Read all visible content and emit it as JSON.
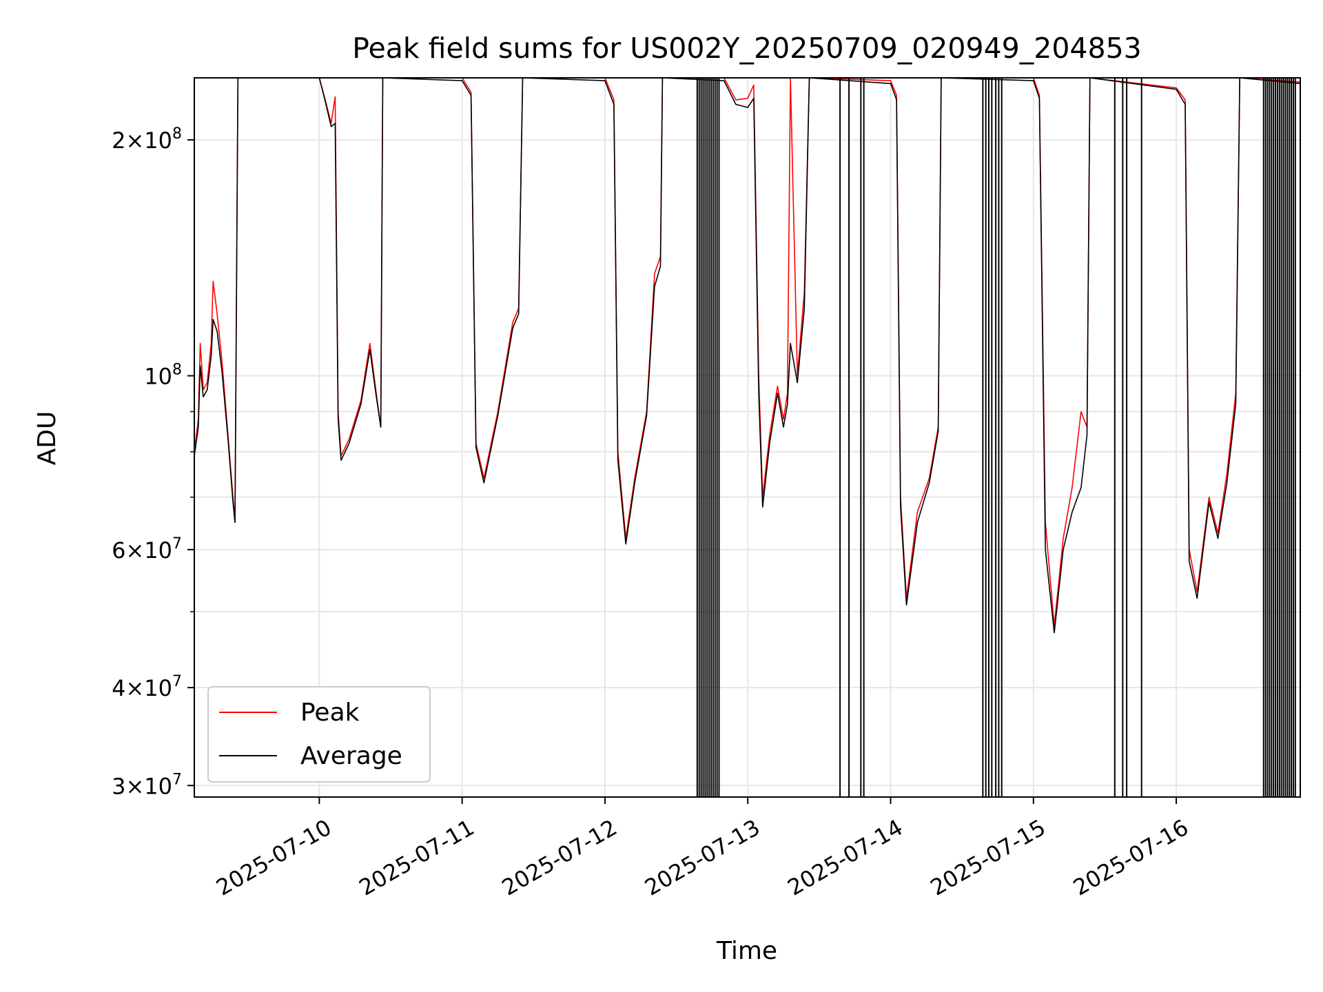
{
  "chart_data": {
    "type": "line",
    "title": "Peak field sums for US002Y_20250709_020949_204853",
    "xlabel": "Time",
    "ylabel": "ADU",
    "yscale": "log",
    "ylim": [
      29000000,
      240000000
    ],
    "xlim": [
      "2025-07-09T03:00",
      "2025-07-16T20:50"
    ],
    "grid": true,
    "legend_position": "lower-left",
    "x_ticks": [
      "2025-07-10",
      "2025-07-11",
      "2025-07-12",
      "2025-07-13",
      "2025-07-14",
      "2025-07-15",
      "2025-07-16"
    ],
    "y_ticks": [
      {
        "value": 30000000,
        "mantissa": "3",
        "exp": "7"
      },
      {
        "value": 40000000,
        "mantissa": "4",
        "exp": "7"
      },
      {
        "value": 60000000,
        "mantissa": "6",
        "exp": "7"
      },
      {
        "value": 100000000,
        "mantissa": "",
        "exp": "8"
      },
      {
        "value": 200000000,
        "mantissa": "2",
        "exp": "8"
      }
    ],
    "y_minor_ticks": [
      50000000,
      70000000,
      80000000,
      90000000
    ],
    "series": [
      {
        "name": "Peak",
        "color": "#ff0000",
        "points": [
          [
            "2025-07-09T03:00",
            80000000
          ],
          [
            "2025-07-09T03:40",
            88000000
          ],
          [
            "2025-07-09T04:00",
            110000000
          ],
          [
            "2025-07-09T04:30",
            96000000
          ],
          [
            "2025-07-09T05:10",
            98000000
          ],
          [
            "2025-07-09T05:50",
            110000000
          ],
          [
            "2025-07-09T06:10",
            132000000
          ],
          [
            "2025-07-09T06:50",
            120000000
          ],
          [
            "2025-07-09T07:40",
            104000000
          ],
          [
            "2025-07-09T08:40",
            84000000
          ],
          [
            "2025-07-09T09:30",
            70000000
          ],
          [
            "2025-07-09T09:50",
            65000000
          ],
          [
            "2025-07-09T10:20",
            240000000
          ],
          [
            "2025-07-10T00:00",
            240000000
          ],
          [
            "2025-07-10T01:00",
            225000000
          ],
          [
            "2025-07-10T02:00",
            210000000
          ],
          [
            "2025-07-10T02:40",
            227000000
          ],
          [
            "2025-07-10T03:10",
            90000000
          ],
          [
            "2025-07-10T03:40",
            79000000
          ],
          [
            "2025-07-10T05:00",
            83000000
          ],
          [
            "2025-07-10T07:00",
            93000000
          ],
          [
            "2025-07-10T08:30",
            110000000
          ],
          [
            "2025-07-10T09:30",
            96000000
          ],
          [
            "2025-07-10T10:20",
            86000000
          ],
          [
            "2025-07-10T10:40",
            240000000
          ],
          [
            "2025-07-11T00:00",
            240000000
          ],
          [
            "2025-07-11T01:30",
            230000000
          ],
          [
            "2025-07-11T02:20",
            82000000
          ],
          [
            "2025-07-11T03:40",
            74000000
          ],
          [
            "2025-07-11T06:00",
            90000000
          ],
          [
            "2025-07-11T08:30",
            117000000
          ],
          [
            "2025-07-11T09:30",
            122000000
          ],
          [
            "2025-07-11T10:10",
            240000000
          ],
          [
            "2025-07-12T00:00",
            240000000
          ],
          [
            "2025-07-12T01:30",
            225000000
          ],
          [
            "2025-07-12T02:10",
            80000000
          ],
          [
            "2025-07-12T03:30",
            62000000
          ],
          [
            "2025-07-12T05:00",
            74000000
          ],
          [
            "2025-07-12T07:00",
            90000000
          ],
          [
            "2025-07-12T08:20",
            135000000
          ],
          [
            "2025-07-12T09:20",
            142000000
          ],
          [
            "2025-07-12T09:40",
            240000000
          ],
          [
            "2025-07-12T20:00",
            240000000
          ],
          [
            "2025-07-12T22:00",
            225000000
          ],
          [
            "2025-07-13T00:00",
            226000000
          ],
          [
            "2025-07-13T01:00",
            235000000
          ],
          [
            "2025-07-13T01:50",
            100000000
          ],
          [
            "2025-07-13T02:30",
            70000000
          ],
          [
            "2025-07-13T03:40",
            84000000
          ],
          [
            "2025-07-13T05:00",
            97000000
          ],
          [
            "2025-07-13T06:00",
            88000000
          ],
          [
            "2025-07-13T06:40",
            95000000
          ],
          [
            "2025-07-13T07:10",
            240000000
          ],
          [
            "2025-07-13T08:20",
            100000000
          ],
          [
            "2025-07-13T09:30",
            128000000
          ],
          [
            "2025-07-13T10:20",
            240000000
          ],
          [
            "2025-07-14T00:00",
            238000000
          ],
          [
            "2025-07-14T01:00",
            228000000
          ],
          [
            "2025-07-14T01:40",
            70000000
          ],
          [
            "2025-07-14T02:40",
            52000000
          ],
          [
            "2025-07-14T04:30",
            67000000
          ],
          [
            "2025-07-14T06:30",
            74000000
          ],
          [
            "2025-07-14T08:00",
            86000000
          ],
          [
            "2025-07-14T08:30",
            240000000
          ],
          [
            "2025-07-15T00:00",
            240000000
          ],
          [
            "2025-07-15T01:00",
            228000000
          ],
          [
            "2025-07-15T02:00",
            65000000
          ],
          [
            "2025-07-15T03:30",
            48000000
          ],
          [
            "2025-07-15T05:00",
            62000000
          ],
          [
            "2025-07-15T06:30",
            72000000
          ],
          [
            "2025-07-15T08:00",
            90000000
          ],
          [
            "2025-07-15T09:00",
            86000000
          ],
          [
            "2025-07-15T09:30",
            240000000
          ],
          [
            "2025-07-16T00:00",
            233000000
          ],
          [
            "2025-07-16T01:30",
            225000000
          ],
          [
            "2025-07-16T02:10",
            60000000
          ],
          [
            "2025-07-16T03:30",
            53000000
          ],
          [
            "2025-07-16T05:30",
            70000000
          ],
          [
            "2025-07-16T07:00",
            63000000
          ],
          [
            "2025-07-16T08:30",
            75000000
          ],
          [
            "2025-07-16T10:00",
            95000000
          ],
          [
            "2025-07-16T10:40",
            240000000
          ],
          [
            "2025-07-16T20:50",
            237000000
          ]
        ]
      },
      {
        "name": "Average",
        "color": "#000000",
        "points": [
          [
            "2025-07-09T03:00",
            79000000
          ],
          [
            "2025-07-09T03:40",
            86000000
          ],
          [
            "2025-07-09T04:00",
            103000000
          ],
          [
            "2025-07-09T04:30",
            94000000
          ],
          [
            "2025-07-09T05:10",
            96000000
          ],
          [
            "2025-07-09T05:50",
            106000000
          ],
          [
            "2025-07-09T06:10",
            118000000
          ],
          [
            "2025-07-09T06:50",
            114000000
          ],
          [
            "2025-07-09T07:40",
            101000000
          ],
          [
            "2025-07-09T08:40",
            83000000
          ],
          [
            "2025-07-09T09:30",
            69000000
          ],
          [
            "2025-07-09T09:50",
            65000000
          ],
          [
            "2025-07-09T10:20",
            240000000
          ],
          [
            "2025-07-10T00:00",
            240000000
          ],
          [
            "2025-07-10T01:00",
            224000000
          ],
          [
            "2025-07-10T02:00",
            208000000
          ],
          [
            "2025-07-10T02:40",
            210000000
          ],
          [
            "2025-07-10T03:10",
            88000000
          ],
          [
            "2025-07-10T03:40",
            78000000
          ],
          [
            "2025-07-10T05:00",
            82000000
          ],
          [
            "2025-07-10T07:00",
            92000000
          ],
          [
            "2025-07-10T08:30",
            108000000
          ],
          [
            "2025-07-10T09:30",
            95000000
          ],
          [
            "2025-07-10T10:20",
            86000000
          ],
          [
            "2025-07-10T10:40",
            240000000
          ],
          [
            "2025-07-11T00:00",
            238000000
          ],
          [
            "2025-07-11T01:30",
            228000000
          ],
          [
            "2025-07-11T02:20",
            81000000
          ],
          [
            "2025-07-11T03:40",
            73000000
          ],
          [
            "2025-07-11T06:00",
            89000000
          ],
          [
            "2025-07-11T08:30",
            115000000
          ],
          [
            "2025-07-11T09:30",
            120000000
          ],
          [
            "2025-07-11T10:10",
            240000000
          ],
          [
            "2025-07-12T00:00",
            238000000
          ],
          [
            "2025-07-12T01:30",
            222000000
          ],
          [
            "2025-07-12T02:10",
            78000000
          ],
          [
            "2025-07-12T03:30",
            61000000
          ],
          [
            "2025-07-12T05:00",
            73000000
          ],
          [
            "2025-07-12T07:00",
            89000000
          ],
          [
            "2025-07-12T08:20",
            130000000
          ],
          [
            "2025-07-12T09:20",
            138000000
          ],
          [
            "2025-07-12T09:40",
            240000000
          ],
          [
            "2025-07-12T20:00",
            238000000
          ],
          [
            "2025-07-12T22:00",
            222000000
          ],
          [
            "2025-07-13T00:00",
            220000000
          ],
          [
            "2025-07-13T01:00",
            226000000
          ],
          [
            "2025-07-13T01:50",
            95000000
          ],
          [
            "2025-07-13T02:30",
            68000000
          ],
          [
            "2025-07-13T03:40",
            82000000
          ],
          [
            "2025-07-13T05:00",
            95000000
          ],
          [
            "2025-07-13T06:00",
            86000000
          ],
          [
            "2025-07-13T06:40",
            92000000
          ],
          [
            "2025-07-13T07:10",
            110000000
          ],
          [
            "2025-07-13T08:20",
            98000000
          ],
          [
            "2025-07-13T09:30",
            122000000
          ],
          [
            "2025-07-13T10:20",
            240000000
          ],
          [
            "2025-07-14T00:00",
            236000000
          ],
          [
            "2025-07-14T01:00",
            225000000
          ],
          [
            "2025-07-14T01:40",
            68000000
          ],
          [
            "2025-07-14T02:40",
            51000000
          ],
          [
            "2025-07-14T04:30",
            65000000
          ],
          [
            "2025-07-14T06:30",
            73000000
          ],
          [
            "2025-07-14T08:00",
            85000000
          ],
          [
            "2025-07-14T08:30",
            240000000
          ],
          [
            "2025-07-15T00:00",
            238000000
          ],
          [
            "2025-07-15T01:00",
            226000000
          ],
          [
            "2025-07-15T02:00",
            60000000
          ],
          [
            "2025-07-15T03:30",
            47000000
          ],
          [
            "2025-07-15T05:00",
            60000000
          ],
          [
            "2025-07-15T06:30",
            67000000
          ],
          [
            "2025-07-15T08:00",
            72000000
          ],
          [
            "2025-07-15T09:00",
            84000000
          ],
          [
            "2025-07-15T09:30",
            240000000
          ],
          [
            "2025-07-16T00:00",
            232000000
          ],
          [
            "2025-07-16T01:30",
            222000000
          ],
          [
            "2025-07-16T02:10",
            58000000
          ],
          [
            "2025-07-16T03:30",
            52000000
          ],
          [
            "2025-07-16T05:30",
            69000000
          ],
          [
            "2025-07-16T07:00",
            62000000
          ],
          [
            "2025-07-16T08:30",
            73000000
          ],
          [
            "2025-07-16T10:00",
            92000000
          ],
          [
            "2025-07-16T10:40",
            240000000
          ],
          [
            "2025-07-16T20:50",
            236000000
          ]
        ]
      }
    ],
    "average_dropouts": [
      "2025-07-12T15:30",
      "2025-07-12T15:50",
      "2025-07-12T16:10",
      "2025-07-12T16:30",
      "2025-07-12T16:50",
      "2025-07-12T17:10",
      "2025-07-12T17:30",
      "2025-07-12T17:50",
      "2025-07-12T18:10",
      "2025-07-12T18:30",
      "2025-07-12T18:50",
      "2025-07-12T19:10",
      "2025-07-13T15:30",
      "2025-07-13T17:00",
      "2025-07-13T19:00",
      "2025-07-13T19:30",
      "2025-07-14T15:30",
      "2025-07-14T16:00",
      "2025-07-14T16:30",
      "2025-07-14T17:00",
      "2025-07-14T17:40",
      "2025-07-14T18:10",
      "2025-07-14T18:40",
      "2025-07-15T13:40",
      "2025-07-15T15:00",
      "2025-07-15T15:40",
      "2025-07-15T18:10",
      "2025-07-16T14:40",
      "2025-07-16T15:00",
      "2025-07-16T15:20",
      "2025-07-16T15:40",
      "2025-07-16T16:00",
      "2025-07-16T16:20",
      "2025-07-16T16:40",
      "2025-07-16T17:00",
      "2025-07-16T17:20",
      "2025-07-16T17:40",
      "2025-07-16T18:00",
      "2025-07-16T18:20",
      "2025-07-16T18:40",
      "2025-07-16T19:00",
      "2025-07-16T19:20",
      "2025-07-16T19:40",
      "2025-07-16T20:00"
    ]
  }
}
